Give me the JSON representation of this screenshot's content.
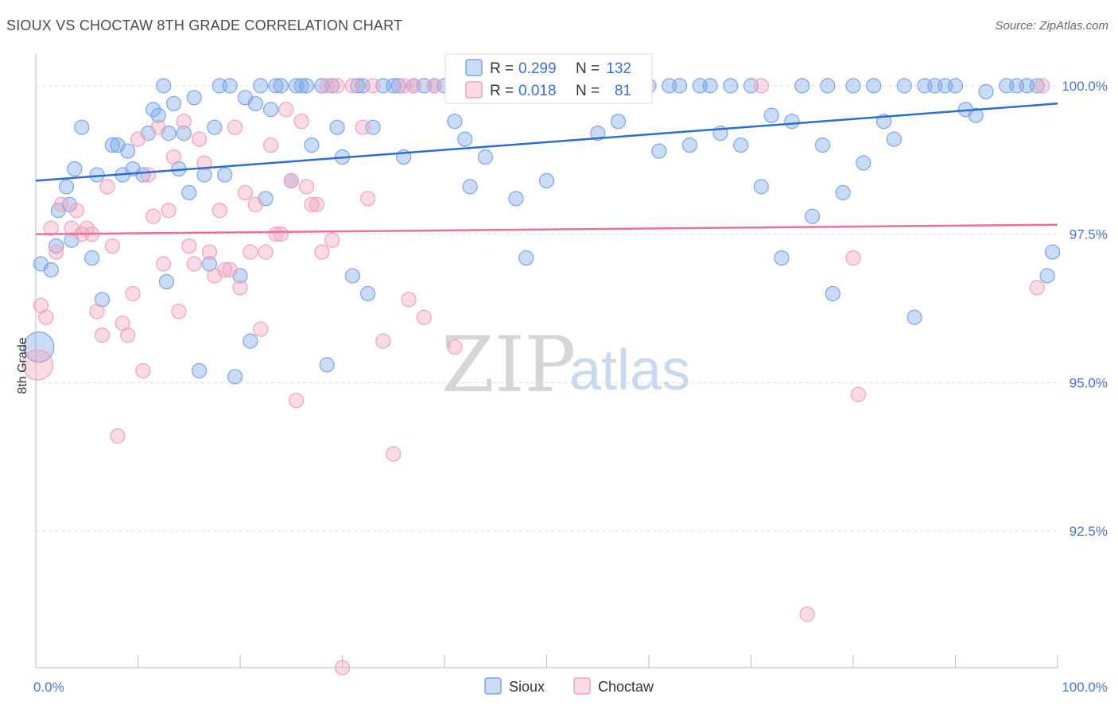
{
  "title": "SIOUX VS CHOCTAW 8TH GRADE CORRELATION CHART",
  "source": "Source: ZipAtlas.com",
  "watermark": {
    "zip": "ZIP",
    "atlas": "atlas"
  },
  "chart_data": {
    "type": "scatter",
    "ylabel": "8th Grade",
    "xlim": [
      0,
      100
    ],
    "ylim": [
      90.2,
      100.4
    ],
    "x_tick_labels": [
      {
        "value": 0,
        "label": "0.0%"
      },
      {
        "value": 100,
        "label": "100.0%"
      }
    ],
    "y_tick_labels": [
      {
        "value": 100,
        "label": "100.0%"
      },
      {
        "value": 97.5,
        "label": "97.5%"
      },
      {
        "value": 95,
        "label": "95.0%"
      },
      {
        "value": 92.5,
        "label": "92.5%"
      }
    ],
    "grid": true,
    "legend_position": "top-center",
    "series": [
      {
        "name": "Sioux",
        "color": "#7aa6e8",
        "R": "0.299",
        "N": "132",
        "trend": [
          [
            0,
            98.4
          ],
          [
            100,
            99.7
          ]
        ],
        "points": [
          [
            0.5,
            97.0
          ],
          [
            1.5,
            96.9
          ],
          [
            2,
            97.3
          ],
          [
            2.2,
            97.9
          ],
          [
            3,
            98.3
          ],
          [
            3.3,
            98.0
          ],
          [
            3.5,
            97.4
          ],
          [
            3.8,
            98.6
          ],
          [
            4.5,
            99.3
          ],
          [
            5.5,
            97.1
          ],
          [
            6,
            98.5
          ],
          [
            6.5,
            96.4
          ],
          [
            7.5,
            99.0
          ],
          [
            8,
            99.0
          ],
          [
            8.5,
            98.5
          ],
          [
            9,
            98.9
          ],
          [
            9.5,
            98.6
          ],
          [
            10.5,
            98.5
          ],
          [
            11,
            99.2
          ],
          [
            11.5,
            99.6
          ],
          [
            12,
            99.5
          ],
          [
            12.5,
            100.0
          ],
          [
            12.8,
            96.7
          ],
          [
            13,
            99.2
          ],
          [
            13.5,
            99.7
          ],
          [
            14,
            98.6
          ],
          [
            14.5,
            99.2
          ],
          [
            15,
            98.2
          ],
          [
            15.5,
            99.8
          ],
          [
            16,
            95.2
          ],
          [
            16.5,
            98.5
          ],
          [
            17,
            97.0
          ],
          [
            17.5,
            99.3
          ],
          [
            18,
            100.0
          ],
          [
            18.5,
            98.5
          ],
          [
            19,
            100.0
          ],
          [
            19.5,
            95.1
          ],
          [
            20,
            96.8
          ],
          [
            20.5,
            99.8
          ],
          [
            21,
            95.7
          ],
          [
            21.5,
            99.7
          ],
          [
            22,
            100.0
          ],
          [
            22.5,
            98.1
          ],
          [
            23,
            99.6
          ],
          [
            23.5,
            100.0
          ],
          [
            24,
            100.0
          ],
          [
            25,
            98.4
          ],
          [
            25.5,
            100.0
          ],
          [
            26,
            100.0
          ],
          [
            26.5,
            100.0
          ],
          [
            27,
            99.0
          ],
          [
            28,
            100.0
          ],
          [
            28.5,
            95.3
          ],
          [
            29,
            100.0
          ],
          [
            29.5,
            99.3
          ],
          [
            30,
            98.8
          ],
          [
            31,
            96.8
          ],
          [
            31.5,
            100.0
          ],
          [
            32,
            100.0
          ],
          [
            32.5,
            96.5
          ],
          [
            33,
            99.3
          ],
          [
            34,
            100.0
          ],
          [
            35,
            100.0
          ],
          [
            35.5,
            100.0
          ],
          [
            36,
            98.8
          ],
          [
            37,
            100.0
          ],
          [
            38,
            100.0
          ],
          [
            39,
            100.0
          ],
          [
            40,
            100.0
          ],
          [
            41,
            99.4
          ],
          [
            42,
            99.1
          ],
          [
            42.5,
            98.3
          ],
          [
            43,
            100.0
          ],
          [
            44,
            98.8
          ],
          [
            46,
            100.0
          ],
          [
            47,
            98.1
          ],
          [
            48,
            97.1
          ],
          [
            49,
            100.0
          ],
          [
            50,
            98.4
          ],
          [
            51,
            100.0
          ],
          [
            52,
            100.0
          ],
          [
            54,
            100.0
          ],
          [
            55,
            99.2
          ],
          [
            56,
            100.0
          ],
          [
            57,
            99.4
          ],
          [
            58,
            100.0
          ],
          [
            60,
            100.0
          ],
          [
            61,
            98.9
          ],
          [
            62,
            100.0
          ],
          [
            63,
            100.0
          ],
          [
            64,
            99.0
          ],
          [
            65,
            100.0
          ],
          [
            66,
            100.0
          ],
          [
            67,
            99.2
          ],
          [
            68,
            100.0
          ],
          [
            69,
            99.0
          ],
          [
            70,
            100.0
          ],
          [
            71,
            98.3
          ],
          [
            72,
            99.5
          ],
          [
            73,
            97.1
          ],
          [
            74,
            99.4
          ],
          [
            75,
            100.0
          ],
          [
            76,
            97.8
          ],
          [
            77,
            99.0
          ],
          [
            77.5,
            100.0
          ],
          [
            78,
            96.5
          ],
          [
            79,
            98.2
          ],
          [
            80,
            100.0
          ],
          [
            81,
            98.7
          ],
          [
            82,
            100.0
          ],
          [
            83,
            99.4
          ],
          [
            84,
            99.1
          ],
          [
            85,
            100.0
          ],
          [
            86,
            96.1
          ],
          [
            87,
            100.0
          ],
          [
            88,
            100.0
          ],
          [
            89,
            100.0
          ],
          [
            90,
            100.0
          ],
          [
            91,
            99.6
          ],
          [
            92,
            99.5
          ],
          [
            93,
            99.9
          ],
          [
            95,
            100.0
          ],
          [
            96,
            100.0
          ],
          [
            97,
            100.0
          ],
          [
            98,
            100.0
          ],
          [
            99,
            96.8
          ],
          [
            99.5,
            97.2
          ],
          [
            0.3,
            95.6
          ]
        ]
      },
      {
        "name": "Choctaw",
        "color": "#f2a2bb",
        "R": "0.018",
        "N": "81",
        "trend": [
          [
            0,
            97.5
          ],
          [
            100,
            97.66
          ]
        ],
        "points": [
          [
            0.5,
            96.3
          ],
          [
            1,
            96.1
          ],
          [
            1.5,
            97.6
          ],
          [
            2,
            97.2
          ],
          [
            2.5,
            98.0
          ],
          [
            3.5,
            97.6
          ],
          [
            4,
            97.9
          ],
          [
            4.5,
            97.5
          ],
          [
            5,
            97.6
          ],
          [
            5.5,
            97.5
          ],
          [
            6,
            96.2
          ],
          [
            6.5,
            95.8
          ],
          [
            7,
            98.3
          ],
          [
            7.5,
            97.3
          ],
          [
            8,
            94.1
          ],
          [
            8.5,
            96.0
          ],
          [
            9,
            95.8
          ],
          [
            9.5,
            96.5
          ],
          [
            10,
            99.1
          ],
          [
            10.5,
            95.2
          ],
          [
            11,
            98.5
          ],
          [
            11.5,
            97.8
          ],
          [
            12,
            99.3
          ],
          [
            12.5,
            97.0
          ],
          [
            13,
            97.9
          ],
          [
            13.5,
            98.8
          ],
          [
            14,
            96.2
          ],
          [
            14.5,
            99.4
          ],
          [
            15,
            97.3
          ],
          [
            15.5,
            97.0
          ],
          [
            16,
            99.1
          ],
          [
            16.5,
            98.7
          ],
          [
            17,
            97.2
          ],
          [
            17.5,
            96.8
          ],
          [
            18,
            97.9
          ],
          [
            18.5,
            96.9
          ],
          [
            19,
            96.9
          ],
          [
            19.5,
            99.3
          ],
          [
            20,
            96.6
          ],
          [
            20.5,
            98.2
          ],
          [
            21,
            97.2
          ],
          [
            21.5,
            98.0
          ],
          [
            22,
            95.9
          ],
          [
            22.5,
            97.2
          ],
          [
            23,
            99.0
          ],
          [
            23.5,
            97.5
          ],
          [
            24,
            97.5
          ],
          [
            24.5,
            99.6
          ],
          [
            25,
            98.4
          ],
          [
            25.5,
            94.7
          ],
          [
            26,
            99.4
          ],
          [
            26.5,
            98.3
          ],
          [
            27,
            98.0
          ],
          [
            27.5,
            98.0
          ],
          [
            28,
            97.2
          ],
          [
            28.5,
            100.0
          ],
          [
            29,
            97.4
          ],
          [
            29.5,
            100.0
          ],
          [
            30,
            90.2
          ],
          [
            31,
            100.0
          ],
          [
            32,
            99.3
          ],
          [
            32.5,
            98.1
          ],
          [
            33,
            100.0
          ],
          [
            34,
            95.7
          ],
          [
            35,
            93.8
          ],
          [
            36,
            100.0
          ],
          [
            36.5,
            96.4
          ],
          [
            37,
            100.0
          ],
          [
            38,
            96.1
          ],
          [
            39,
            100.0
          ],
          [
            41,
            95.6
          ],
          [
            71,
            100.0
          ],
          [
            75.5,
            91.1
          ],
          [
            80,
            97.1
          ],
          [
            80.5,
            94.8
          ],
          [
            98,
            96.6
          ],
          [
            98.5,
            100.0
          ],
          [
            0.2,
            95.3
          ]
        ]
      }
    ]
  }
}
